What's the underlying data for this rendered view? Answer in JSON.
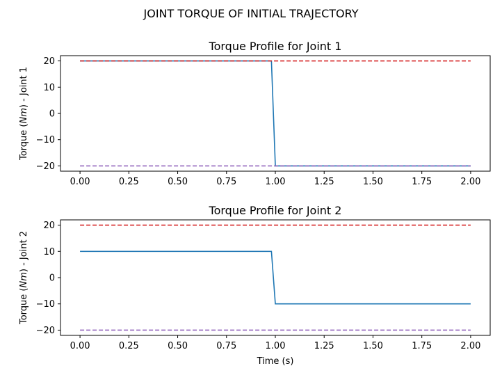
{
  "figure": {
    "suptitle": "JOINT TORQUE OF INITIAL TRAJECTORY"
  },
  "chart_data": [
    {
      "type": "line",
      "title": "Torque Profile for Joint 1",
      "ylabel": "Torque (Nm) - Joint 1",
      "xlabel": "",
      "xlim": [
        -0.1,
        2.1
      ],
      "ylim": [
        -22,
        22
      ],
      "xticks": [
        0.0,
        0.25,
        0.5,
        0.75,
        1.0,
        1.25,
        1.5,
        1.75,
        2.0
      ],
      "xtick_labels": [
        "0.00",
        "0.25",
        "0.50",
        "0.75",
        "1.00",
        "1.25",
        "1.50",
        "1.75",
        "2.00"
      ],
      "yticks": [
        20,
        10,
        0,
        -10,
        -20
      ],
      "ytick_labels": [
        "20",
        "10",
        "0",
        "−10",
        "−20"
      ],
      "grid": false,
      "series": [
        {
          "color": "#1f77b4",
          "style": "solid",
          "x": [
            0.0,
            0.98,
            1.0,
            2.0
          ],
          "y": [
            20,
            20,
            -20,
            -20
          ]
        },
        {
          "color": "#d62728",
          "style": "dashed",
          "x": [
            0.0,
            2.0
          ],
          "y": [
            20,
            20
          ]
        },
        {
          "color": "#9467bd",
          "style": "dashed",
          "x": [
            0.0,
            2.0
          ],
          "y": [
            -20,
            -20
          ]
        }
      ]
    },
    {
      "type": "line",
      "title": "Torque Profile for Joint 2",
      "ylabel": "Torque (Nm) - Joint 2",
      "xlabel": "Time (s)",
      "xlim": [
        -0.1,
        2.1
      ],
      "ylim": [
        -22,
        22
      ],
      "xticks": [
        0.0,
        0.25,
        0.5,
        0.75,
        1.0,
        1.25,
        1.5,
        1.75,
        2.0
      ],
      "xtick_labels": [
        "0.00",
        "0.25",
        "0.50",
        "0.75",
        "1.00",
        "1.25",
        "1.50",
        "1.75",
        "2.00"
      ],
      "yticks": [
        20,
        10,
        0,
        -10,
        -20
      ],
      "ytick_labels": [
        "20",
        "10",
        "0",
        "−10",
        "−20"
      ],
      "grid": false,
      "series": [
        {
          "color": "#1f77b4",
          "style": "solid",
          "x": [
            0.0,
            0.98,
            1.0,
            2.0
          ],
          "y": [
            10,
            10,
            -10,
            -10
          ]
        },
        {
          "color": "#d62728",
          "style": "dashed",
          "x": [
            0.0,
            2.0
          ],
          "y": [
            20,
            20
          ]
        },
        {
          "color": "#9467bd",
          "style": "dashed",
          "x": [
            0.0,
            2.0
          ],
          "y": [
            -20,
            -20
          ]
        }
      ]
    }
  ]
}
